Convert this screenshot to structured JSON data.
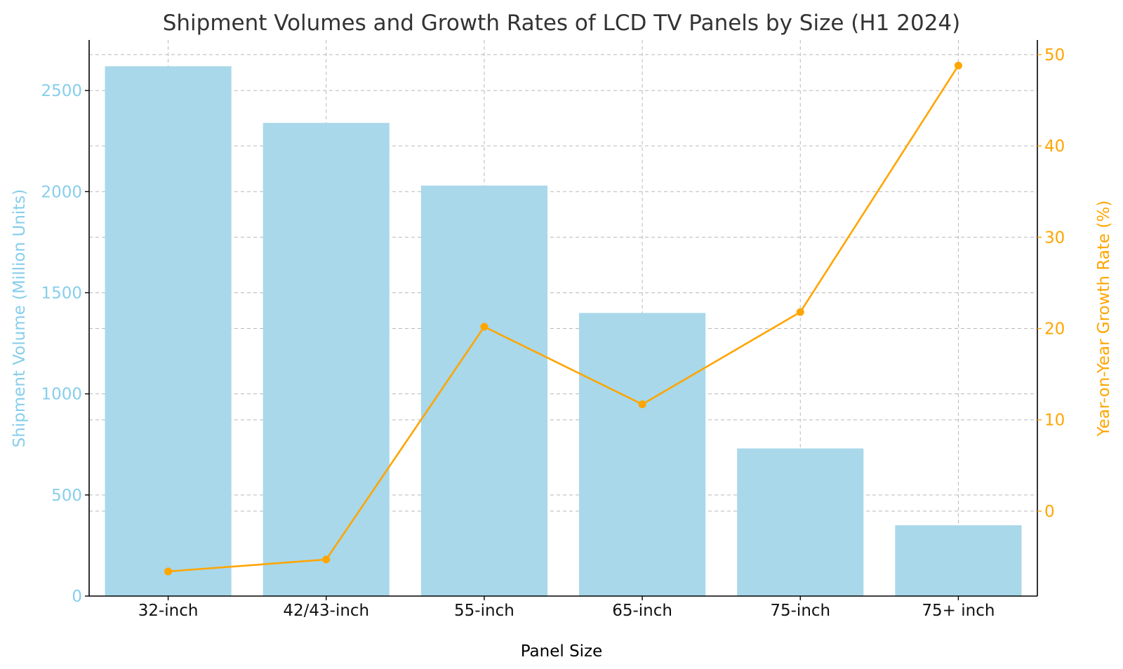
{
  "chart_data": {
    "type": "bar",
    "title": "Shipment Volumes and Growth Rates of LCD TV Panels by Size (H1 2024)",
    "xlabel": "Panel Size",
    "ylabel": "Shipment Volume (Million Units)",
    "y2label": "Year-on-Year Growth Rate (%)",
    "categories": [
      "32-inch",
      "42/43-inch",
      "55-inch",
      "65-inch",
      "75-inch",
      "75+ inch"
    ],
    "series": [
      {
        "type": "bar",
        "axis": "left",
        "values": [
          2620,
          2340,
          2030,
          1400,
          730,
          350
        ],
        "color": "#a8d8ea"
      },
      {
        "type": "line",
        "axis": "right",
        "values": [
          -6.6,
          -5.3,
          20.2,
          11.7,
          21.8,
          48.8
        ],
        "color": "#ffa500"
      }
    ],
    "ylim": [
      0,
      2750
    ],
    "y2lim": [
      -9.3,
      51.6
    ],
    "yticks": [
      0,
      500,
      1000,
      1500,
      2000,
      2500
    ],
    "y2ticks": [
      0,
      10,
      20,
      30,
      40,
      50
    ],
    "grid": true,
    "colors": {
      "left_axis": "#87ceeb",
      "right_axis": "#ffa500",
      "bar": "#a8d8ea",
      "line": "#ffa500"
    }
  }
}
